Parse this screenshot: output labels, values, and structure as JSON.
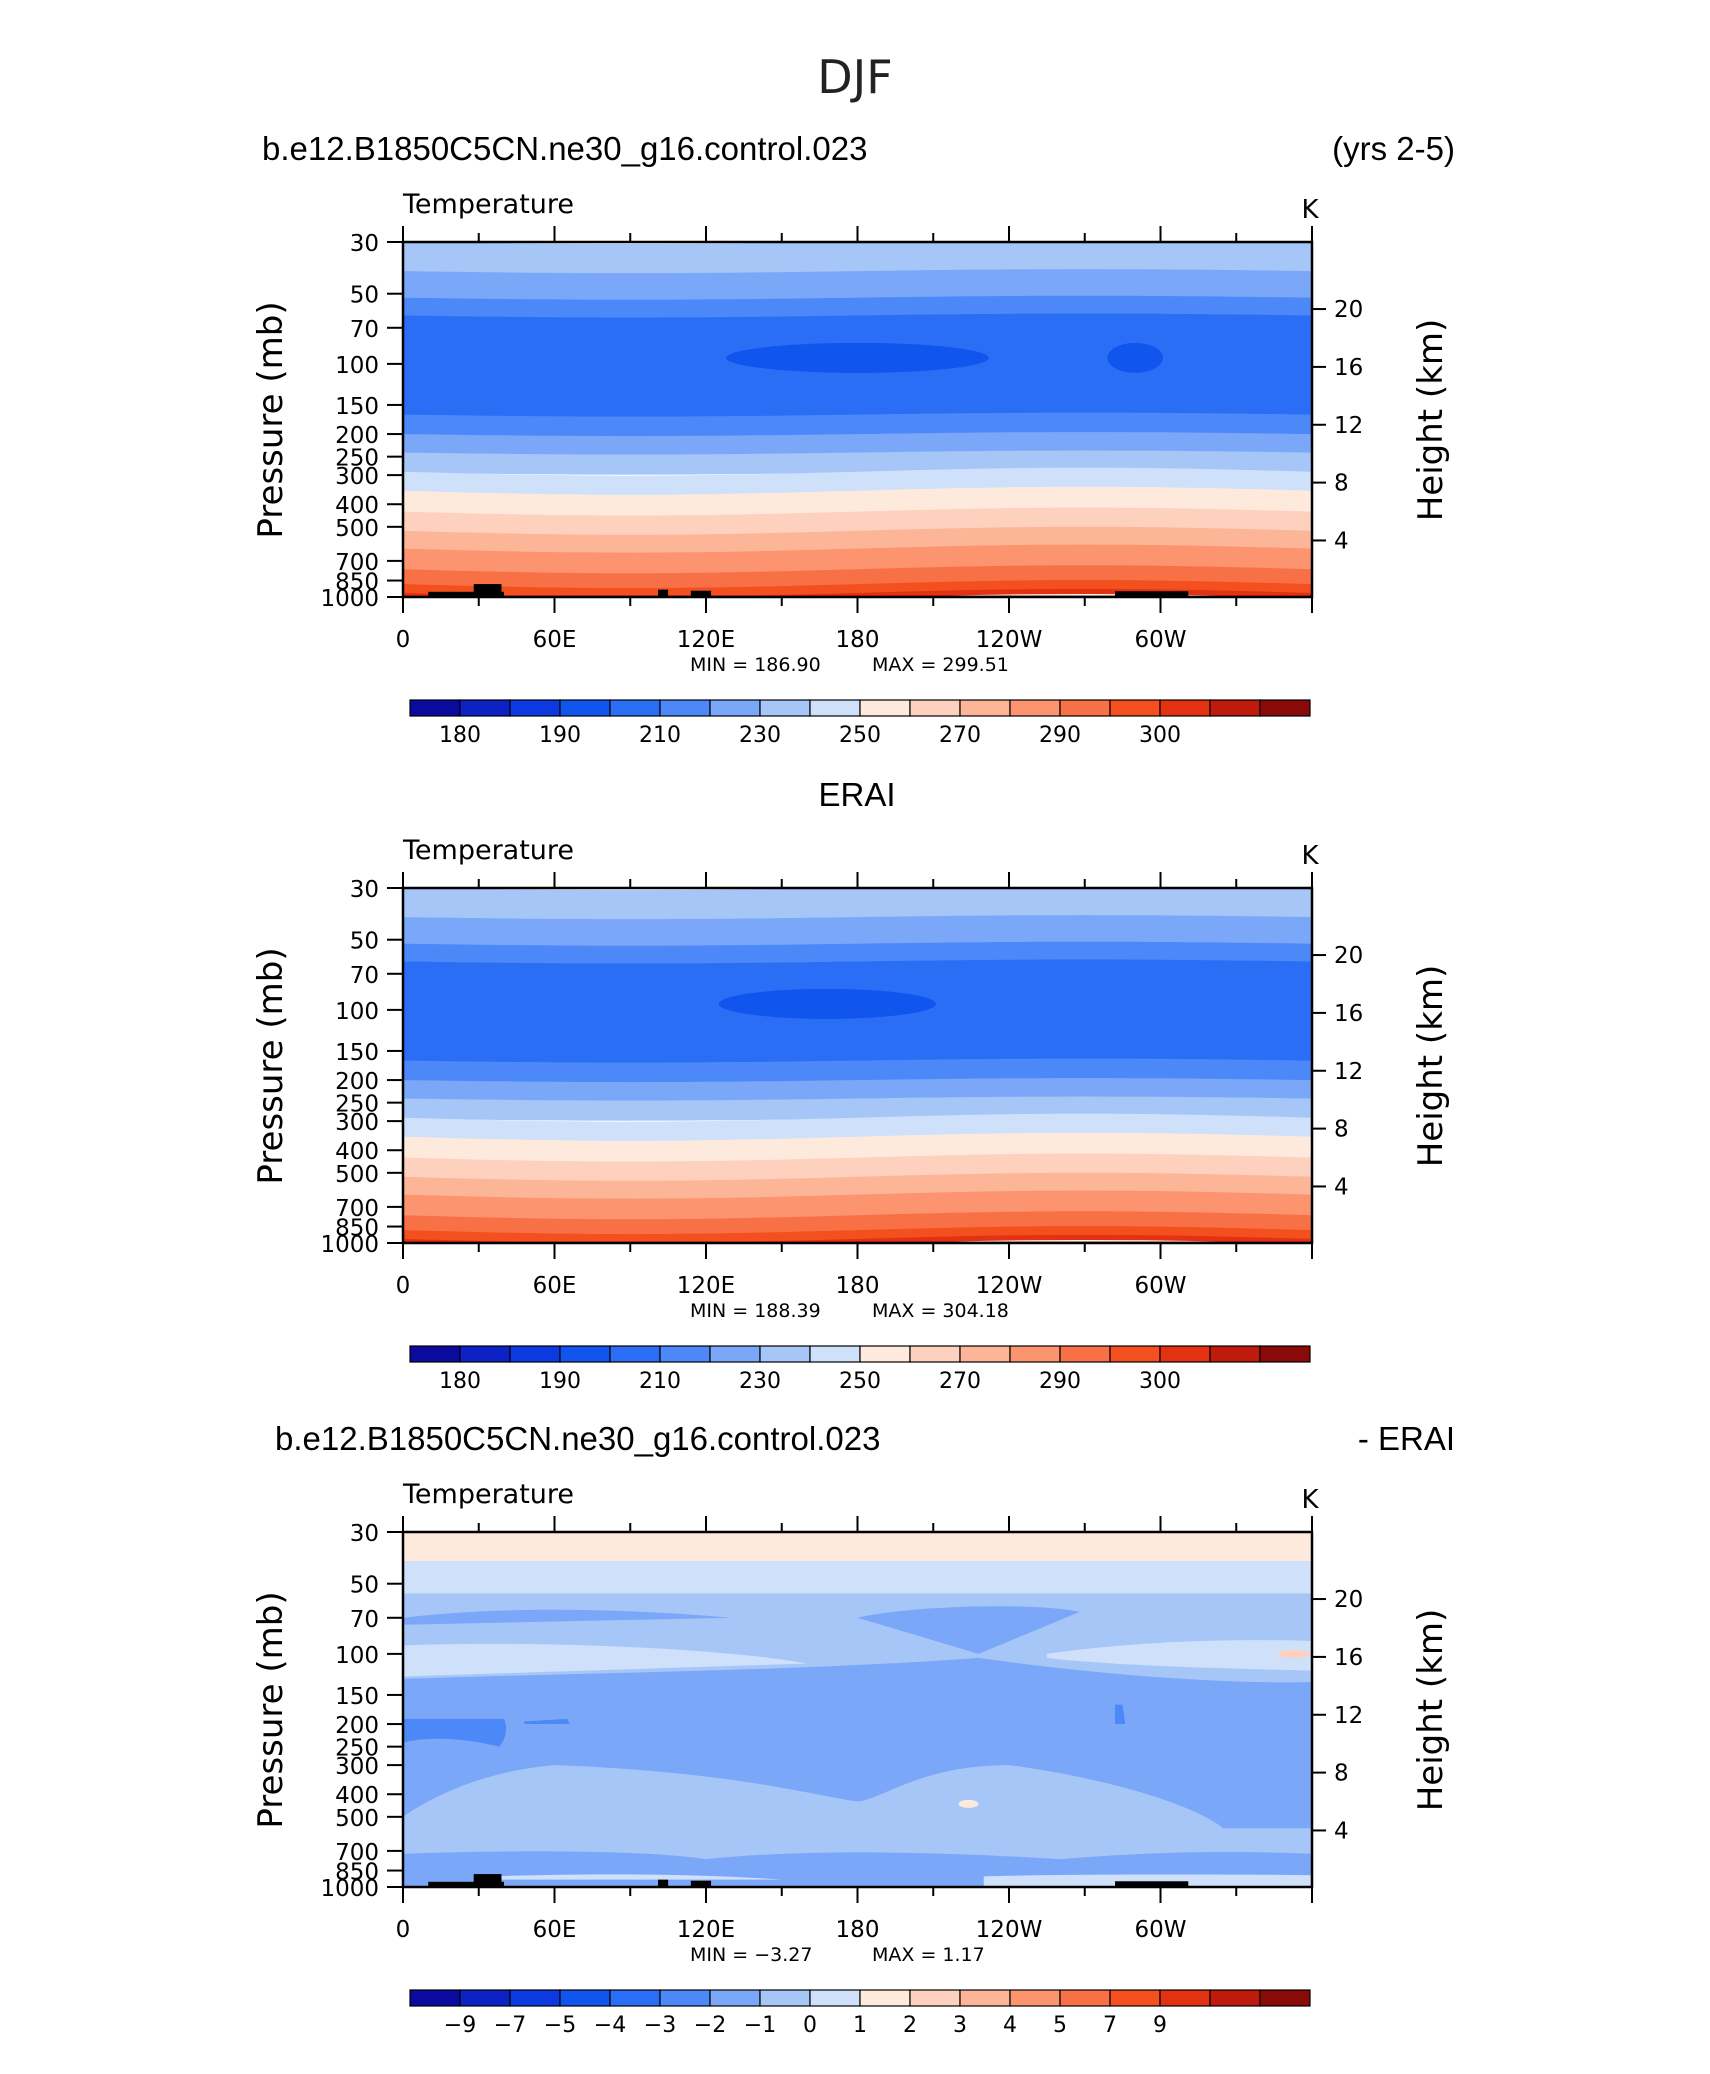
{
  "figure": {
    "title": "DJF",
    "colors": {
      "land": "#000000",
      "axis": "#000000"
    }
  },
  "chart_data": [
    {
      "type": "heatmap",
      "header_left": "b.e12.B1850C5CN.ne30_g16.control.023",
      "header_right": "(yrs 2-5)",
      "title": "Temperature",
      "units": "K",
      "ylabel": "Pressure  (mb)",
      "ylabel_right": "Height  (km)",
      "x_ticks": [
        "0",
        "60E",
        "120E",
        "180",
        "120W",
        "60W"
      ],
      "y_ticks": [
        "30",
        "50",
        "70",
        "100",
        "150",
        "200",
        "250",
        "300",
        "400",
        "500",
        "700",
        "850",
        "1000"
      ],
      "height_ticks": [
        "20",
        "16",
        "12",
        "8",
        "4"
      ],
      "xlim": [
        0,
        360
      ],
      "ylim": [
        1000,
        30
      ],
      "log_y": true,
      "min_label": "MIN =  186.90",
      "max_label": "MAX =  299.51",
      "colorbar_labels": [
        "180",
        "190",
        "210",
        "230",
        "250",
        "270",
        "290",
        "300"
      ],
      "levels": [
        {
          "p": 30,
          "level": 7
        },
        {
          "p": 40,
          "level": 6
        },
        {
          "p": 52,
          "level": 5
        },
        {
          "p": 62,
          "level": 4
        },
        {
          "p": 140,
          "level": 4
        },
        {
          "p": 165,
          "level": 5
        },
        {
          "p": 200,
          "level": 6
        },
        {
          "p": 240,
          "level": 7
        },
        {
          "p": 290,
          "level": 8
        },
        {
          "p": 350,
          "level": 9
        },
        {
          "p": 430,
          "level": 10
        },
        {
          "p": 520,
          "level": 11
        },
        {
          "p": 620,
          "level": 12
        },
        {
          "p": 760,
          "level": 13
        },
        {
          "p": 880,
          "level": 14
        },
        {
          "p": 960,
          "level": 15
        }
      ],
      "cold_core": [
        {
          "x_center": 180,
          "x_half_width": 52,
          "p": 100,
          "level": 3
        },
        {
          "x_center": 290,
          "x_half_width": 11,
          "p": 100,
          "level": 3
        }
      ],
      "show_land": true
    },
    {
      "type": "heatmap",
      "header_center": "ERAI",
      "title": "Temperature",
      "units": "K",
      "ylabel": "Pressure  (mb)",
      "ylabel_right": "Height  (km)",
      "x_ticks": [
        "0",
        "60E",
        "120E",
        "180",
        "120W",
        "60W"
      ],
      "y_ticks": [
        "30",
        "50",
        "70",
        "100",
        "150",
        "200",
        "250",
        "300",
        "400",
        "500",
        "700",
        "850",
        "1000"
      ],
      "height_ticks": [
        "20",
        "16",
        "12",
        "8",
        "4"
      ],
      "xlim": [
        0,
        360
      ],
      "ylim": [
        1000,
        30
      ],
      "log_y": true,
      "min_label": "MIN =  188.39",
      "max_label": "MAX =  304.18",
      "colorbar_labels": [
        "180",
        "190",
        "210",
        "230",
        "250",
        "270",
        "290",
        "300"
      ],
      "levels": [
        {
          "p": 30,
          "level": 7
        },
        {
          "p": 40,
          "level": 6
        },
        {
          "p": 52,
          "level": 5
        },
        {
          "p": 62,
          "level": 4
        },
        {
          "p": 140,
          "level": 4
        },
        {
          "p": 165,
          "level": 5
        },
        {
          "p": 200,
          "level": 6
        },
        {
          "p": 240,
          "level": 7
        },
        {
          "p": 290,
          "level": 8
        },
        {
          "p": 350,
          "level": 9
        },
        {
          "p": 430,
          "level": 10
        },
        {
          "p": 520,
          "level": 11
        },
        {
          "p": 620,
          "level": 12
        },
        {
          "p": 760,
          "level": 13
        },
        {
          "p": 880,
          "level": 14
        },
        {
          "p": 960,
          "level": 15
        }
      ],
      "cold_core": [
        {
          "x_center": 168,
          "x_half_width": 43,
          "p": 100,
          "level": 3
        }
      ],
      "show_land": false
    },
    {
      "type": "heatmap",
      "header_left": "b.e12.B1850C5CN.ne30_g16.control.023",
      "header_right": "- ERAI",
      "title": "Temperature",
      "units": "K",
      "ylabel": "Pressure  (mb)",
      "ylabel_right": "Height  (km)",
      "x_ticks": [
        "0",
        "60E",
        "120E",
        "180",
        "120W",
        "60W"
      ],
      "y_ticks": [
        "30",
        "50",
        "70",
        "100",
        "150",
        "200",
        "250",
        "300",
        "400",
        "500",
        "700",
        "850",
        "1000"
      ],
      "height_ticks": [
        "20",
        "16",
        "12",
        "8",
        "4"
      ],
      "xlim": [
        0,
        360
      ],
      "ylim": [
        1000,
        30
      ],
      "log_y": true,
      "min_label": "MIN =   −3.27",
      "max_label": "MAX =    1.17",
      "colorbar_labels": [
        "−9",
        "−7",
        "−5",
        "−4",
        "−3",
        "−2",
        "−1",
        "0",
        "1",
        "2",
        "3",
        "4",
        "5",
        "7",
        "9"
      ],
      "show_land": true
    }
  ],
  "colorbar": {
    "colors": [
      "#0a0a9e",
      "#0d22c4",
      "#0c3ae0",
      "#0f55ee",
      "#2b6ef6",
      "#4c88f8",
      "#7aa7f8",
      "#a6c6f8",
      "#cfe0fb",
      "#feeadc",
      "#fdd1bd",
      "#fdb598",
      "#fc9470",
      "#f87146",
      "#f4501f",
      "#e23212",
      "#bf1b0d",
      "#8a0a0a"
    ]
  }
}
